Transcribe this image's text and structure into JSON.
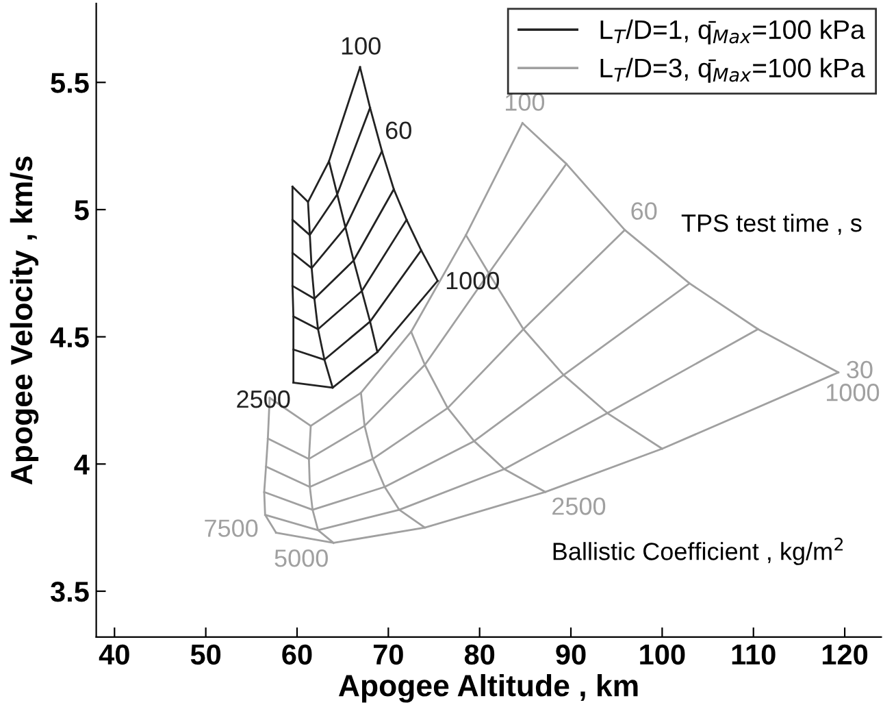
{
  "chart_data": {
    "type": "line",
    "xlabel": "Apogee Altitude , km",
    "ylabel": "Apogee Velocity , km/s",
    "xlim": [
      38,
      124
    ],
    "ylim": [
      3.32,
      5.81
    ],
    "xticks": [
      40,
      50,
      60,
      70,
      80,
      90,
      100,
      110,
      120
    ],
    "yticks": [
      3.5,
      4,
      4.5,
      5,
      5.5
    ],
    "grid": false,
    "legend": "top right",
    "marker": "none",
    "line_style": "solid",
    "annotations": [
      "TPS test time , s",
      "Ballistic Coefficient , kg/m$^{2}$",
      {
        "text": "100",
        "x": 66.9,
        "y": 5.56
      },
      {
        "text": "60",
        "x": 69.3,
        "y": 5.23
      },
      {
        "text": "1000",
        "x": 75.4,
        "y": 4.72
      },
      {
        "text": "2500",
        "x": 59.6,
        "y": 4.32
      },
      {
        "text": "100",
        "x": 84.7,
        "y": 5.34
      },
      {
        "text": "60",
        "x": 95.9,
        "y": 4.92
      },
      {
        "text": "30",
        "x": 119.3,
        "y": 4.36
      },
      {
        "text": "1000",
        "x": 119.3,
        "y": 4.36
      },
      {
        "text": "2500",
        "x": 87.2,
        "y": 3.89
      },
      {
        "text": "5000",
        "x": 64.0,
        "y": 3.69
      },
      {
        "text": "7500",
        "x": 56.5,
        "y": 3.8
      }
    ],
    "series": [
      {
        "name": "L$_{T}$/D=1, q̄$_{Max}$=100 kPa",
        "color": "#222222",
        "x": [
          66.9,
          68.0,
          69.3,
          70.6,
          72.0,
          73.6,
          75.4
        ],
        "values": [
          5.56,
          5.4,
          5.23,
          5.08,
          4.96,
          4.84,
          4.72
        ]
      },
      {
        "color": "#222222",
        "x": [
          63.5,
          64.4,
          65.3,
          66.2,
          67.1,
          68.0,
          68.8
        ],
        "values": [
          5.19,
          5.06,
          4.93,
          4.8,
          4.68,
          4.56,
          4.44
        ]
      },
      {
        "color": "#222222",
        "x": [
          61.2,
          61.4,
          61.6,
          61.9,
          62.3,
          63.0,
          63.9
        ],
        "values": [
          5.03,
          4.9,
          4.77,
          4.65,
          4.53,
          4.41,
          4.3
        ]
      },
      {
        "color": "#222222",
        "x": [
          59.5,
          59.5,
          59.5,
          59.5,
          59.6,
          59.6,
          59.6
        ],
        "values": [
          5.09,
          4.96,
          4.83,
          4.7,
          4.58,
          4.45,
          4.32
        ]
      },
      {
        "color": "#222222",
        "x": [
          66.9,
          63.5,
          61.2,
          59.5
        ],
        "values": [
          5.56,
          5.19,
          5.03,
          5.09
        ]
      },
      {
        "color": "#222222",
        "x": [
          68.0,
          64.4,
          61.4,
          59.5
        ],
        "values": [
          5.4,
          5.06,
          4.9,
          4.96
        ]
      },
      {
        "color": "#222222",
        "x": [
          69.3,
          65.3,
          61.6,
          59.5
        ],
        "values": [
          5.23,
          4.93,
          4.77,
          4.83
        ]
      },
      {
        "color": "#222222",
        "x": [
          70.6,
          66.2,
          61.9,
          59.5
        ],
        "values": [
          5.08,
          4.8,
          4.65,
          4.7
        ]
      },
      {
        "color": "#222222",
        "x": [
          72.0,
          67.1,
          62.3,
          59.6
        ],
        "values": [
          4.96,
          4.68,
          4.53,
          4.58
        ]
      },
      {
        "color": "#222222",
        "x": [
          73.6,
          68.0,
          63.0,
          59.6
        ],
        "values": [
          4.84,
          4.56,
          4.41,
          4.45
        ]
      },
      {
        "color": "#222222",
        "x": [
          75.4,
          68.8,
          63.9,
          59.6
        ],
        "values": [
          4.72,
          4.44,
          4.3,
          4.32
        ]
      },
      {
        "name": "L$_{T}$/D=3, q̄$_{Max}$=100 kPa",
        "color": "#a0a0a0",
        "x": [
          84.7,
          89.5,
          95.9,
          103.0,
          110.5,
          119.3
        ],
        "values": [
          5.34,
          5.18,
          4.92,
          4.71,
          4.53,
          4.36
        ]
      },
      {
        "color": "#a0a0a0",
        "x": [
          78.5,
          81.0,
          84.8,
          89.2,
          94.0,
          100.0
        ],
        "values": [
          4.9,
          4.75,
          4.53,
          4.35,
          4.2,
          4.06
        ]
      },
      {
        "color": "#a0a0a0",
        "x": [
          72.5,
          74.0,
          76.5,
          79.4,
          82.7,
          87.2
        ],
        "values": [
          4.52,
          4.39,
          4.22,
          4.09,
          3.98,
          3.89
        ]
      },
      {
        "color": "#a0a0a0",
        "x": [
          67.0,
          67.4,
          68.3,
          69.6,
          71.2,
          74.0
        ],
        "values": [
          4.28,
          4.15,
          4.02,
          3.91,
          3.82,
          3.75
        ]
      },
      {
        "color": "#a0a0a0",
        "x": [
          61.5,
          61.3,
          61.4,
          61.7,
          62.3,
          64.0
        ],
        "values": [
          4.15,
          4.02,
          3.91,
          3.82,
          3.74,
          3.69
        ]
      },
      {
        "color": "#a0a0a0",
        "x": [
          57.0,
          56.8,
          56.6,
          56.4,
          56.5,
          57.7
        ],
        "values": [
          4.26,
          4.1,
          3.99,
          3.89,
          3.8,
          3.73
        ]
      },
      {
        "color": "#a0a0a0",
        "x": [
          84.7,
          78.5,
          72.5,
          67.0,
          61.5,
          57.0
        ],
        "values": [
          5.34,
          4.9,
          4.52,
          4.28,
          4.15,
          4.26
        ]
      },
      {
        "color": "#a0a0a0",
        "x": [
          89.5,
          81.0,
          74.0,
          67.4,
          61.3,
          56.8
        ],
        "values": [
          5.18,
          4.75,
          4.39,
          4.15,
          4.02,
          4.1
        ]
      },
      {
        "color": "#a0a0a0",
        "x": [
          95.9,
          84.8,
          76.5,
          68.3,
          61.4,
          56.6
        ],
        "values": [
          4.92,
          4.53,
          4.22,
          4.02,
          3.91,
          3.99
        ]
      },
      {
        "color": "#a0a0a0",
        "x": [
          103.0,
          89.2,
          79.4,
          69.6,
          61.7,
          56.4
        ],
        "values": [
          4.71,
          4.35,
          4.09,
          3.91,
          3.82,
          3.89
        ]
      },
      {
        "color": "#a0a0a0",
        "x": [
          110.5,
          94.0,
          82.7,
          71.2,
          62.3,
          56.5
        ],
        "values": [
          4.53,
          4.2,
          3.98,
          3.82,
          3.74,
          3.8
        ]
      },
      {
        "color": "#a0a0a0",
        "x": [
          119.3,
          100.0,
          87.2,
          74.0,
          64.0,
          57.7
        ],
        "values": [
          4.36,
          4.06,
          3.89,
          3.75,
          3.69,
          3.73
        ]
      }
    ]
  }
}
